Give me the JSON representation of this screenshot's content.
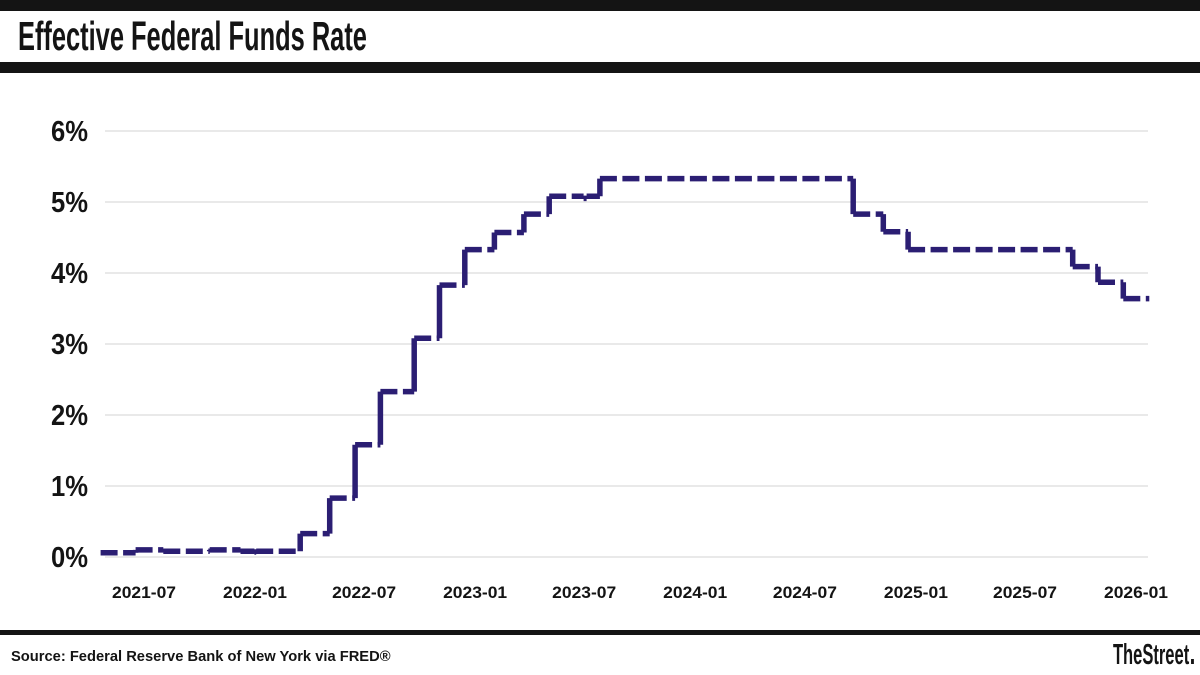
{
  "header": {
    "title": "Effective Federal Funds Rate"
  },
  "footer": {
    "source": "Source: Federal Reserve Bank of New York via FRED®",
    "brand": "TheStreet"
  },
  "chart_data": {
    "type": "line",
    "subtype": "step-after",
    "line_style": "dashed",
    "title": "Effective Federal Funds Rate",
    "xlabel": "",
    "ylabel": "",
    "ylim": [
      0,
      6
    ],
    "y_unit": "%",
    "yticks": [
      "0%",
      "1%",
      "2%",
      "3%",
      "4%",
      "5%",
      "6%"
    ],
    "xticks": [
      "2021-07",
      "2022-01",
      "2022-07",
      "2023-01",
      "2023-07",
      "2024-01",
      "2024-07",
      "2025-01",
      "2025-07",
      "2026-01"
    ],
    "xlim": [
      "2021-04-20",
      "2026-01-23"
    ],
    "grid": "horizontal only",
    "legend": "none",
    "colors": {
      "line": "#2b1e73",
      "grid": "#dcdcdc",
      "text": "#141414",
      "background": "#ffffff"
    },
    "series": [
      {
        "name": "Effective Federal Funds Rate (%)",
        "points": [
          [
            "2021-04-20",
            0.06
          ],
          [
            "2021-06-17",
            0.1
          ],
          [
            "2021-08-02",
            0.08
          ],
          [
            "2021-10-18",
            0.1
          ],
          [
            "2021-12-08",
            0.08
          ],
          [
            "2021-12-31",
            0.07
          ],
          [
            "2022-01-03",
            0.08
          ],
          [
            "2022-03-17",
            0.33
          ],
          [
            "2022-05-05",
            0.83
          ],
          [
            "2022-06-16",
            1.58
          ],
          [
            "2022-07-28",
            2.33
          ],
          [
            "2022-09-22",
            3.08
          ],
          [
            "2022-11-03",
            3.83
          ],
          [
            "2022-12-15",
            4.33
          ],
          [
            "2023-02-02",
            4.57
          ],
          [
            "2023-03-23",
            4.83
          ],
          [
            "2023-05-04",
            5.08
          ],
          [
            "2023-06-30",
            5.05
          ],
          [
            "2023-07-05",
            5.08
          ],
          [
            "2023-07-27",
            5.33
          ],
          [
            "2024-09-19",
            4.83
          ],
          [
            "2024-11-08",
            4.58
          ],
          [
            "2024-12-19",
            4.33
          ],
          [
            "2025-09-18",
            4.09
          ],
          [
            "2025-10-30",
            3.87
          ],
          [
            "2025-12-11",
            3.64
          ],
          [
            "2026-01-23",
            3.64
          ]
        ]
      }
    ]
  }
}
